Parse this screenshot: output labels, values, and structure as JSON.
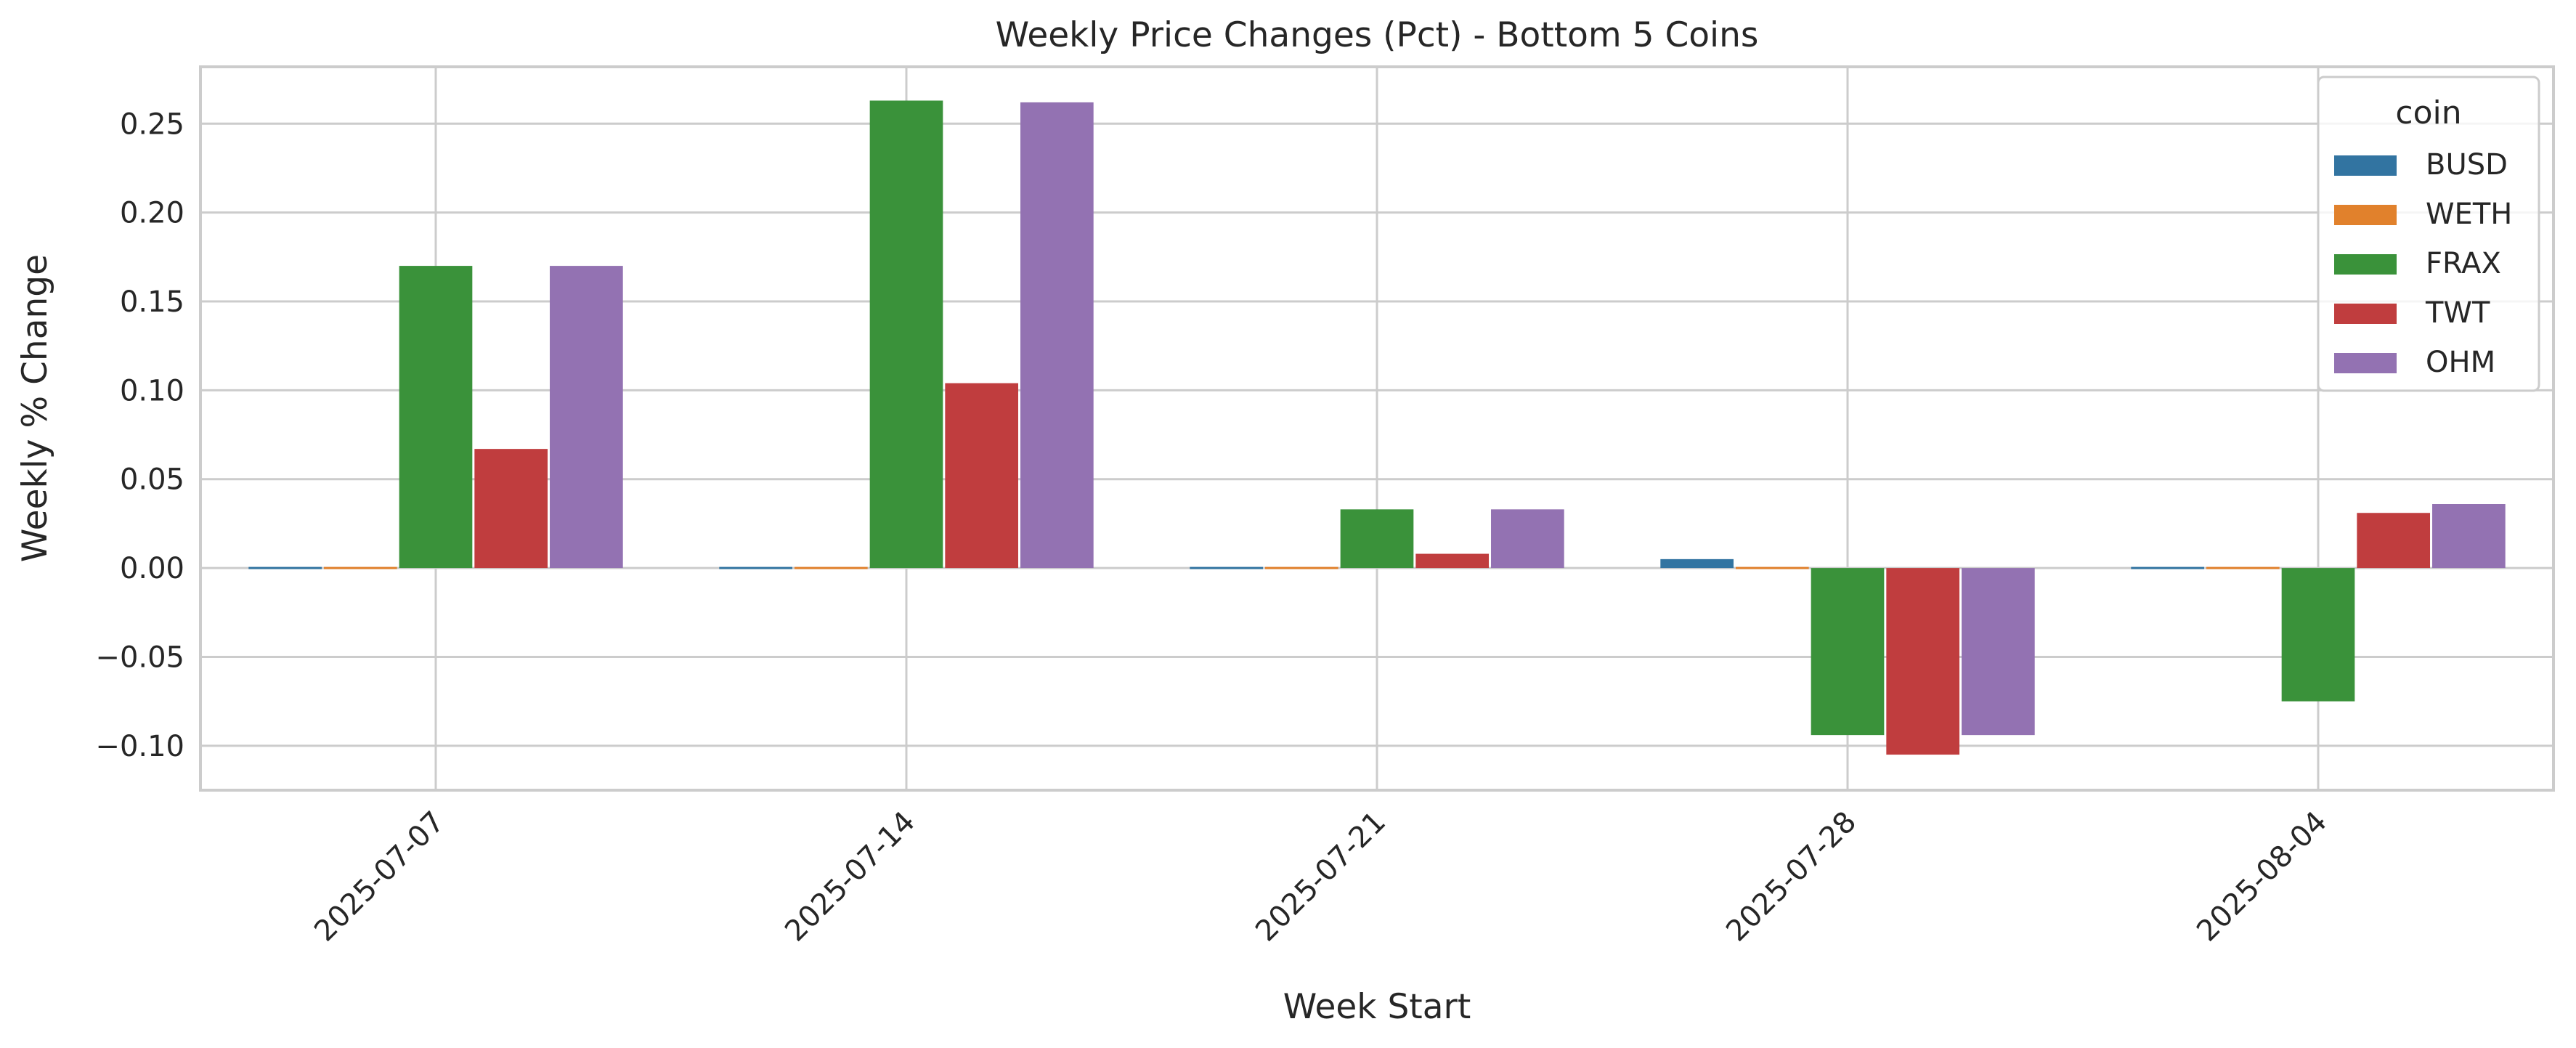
{
  "chart_data": {
    "type": "bar",
    "title": "Weekly Price Changes (Pct) - Bottom 5 Coins",
    "xlabel": "Week Start",
    "ylabel": "Weekly % Change",
    "categories": [
      "2025-07-07",
      "2025-07-14",
      "2025-07-21",
      "2025-07-28",
      "2025-08-04"
    ],
    "ylim": [
      -0.125,
      0.282
    ],
    "yticks": [
      -0.1,
      -0.05,
      0.0,
      0.05,
      0.1,
      0.15,
      0.2,
      0.25
    ],
    "ytick_labels": [
      "−0.10",
      "−0.05",
      "0.00",
      "0.05",
      "0.10",
      "0.15",
      "0.20",
      "0.25"
    ],
    "grid": true,
    "legend": {
      "title": "coin",
      "placement": "top-right"
    },
    "series": [
      {
        "name": "BUSD",
        "color": "#3274a1",
        "values": [
          0.0,
          0.0,
          0.0,
          0.005,
          0.0
        ]
      },
      {
        "name": "WETH",
        "color": "#e1812c",
        "values": [
          0.0,
          0.0,
          0.0,
          0.0,
          0.0
        ]
      },
      {
        "name": "FRAX",
        "color": "#3a923a",
        "values": [
          0.17,
          0.263,
          0.033,
          -0.094,
          -0.075
        ]
      },
      {
        "name": "TWT",
        "color": "#c03d3e",
        "values": [
          0.067,
          0.104,
          0.008,
          -0.105,
          0.031
        ]
      },
      {
        "name": "OHM",
        "color": "#9372b2",
        "values": [
          0.17,
          0.262,
          0.033,
          -0.094,
          0.036
        ]
      }
    ]
  }
}
